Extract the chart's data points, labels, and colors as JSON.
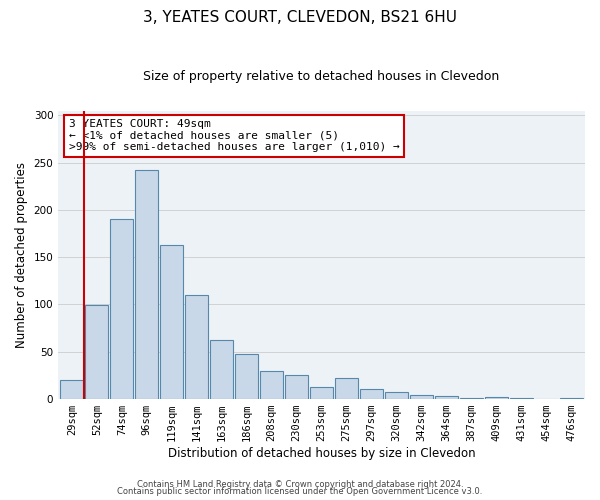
{
  "title": "3, YEATES COURT, CLEVEDON, BS21 6HU",
  "subtitle": "Size of property relative to detached houses in Clevedon",
  "xlabel": "Distribution of detached houses by size in Clevedon",
  "ylabel": "Number of detached properties",
  "bar_labels": [
    "29sqm",
    "52sqm",
    "74sqm",
    "96sqm",
    "119sqm",
    "141sqm",
    "163sqm",
    "186sqm",
    "208sqm",
    "230sqm",
    "253sqm",
    "275sqm",
    "297sqm",
    "320sqm",
    "342sqm",
    "364sqm",
    "387sqm",
    "409sqm",
    "431sqm",
    "454sqm",
    "476sqm"
  ],
  "bar_values": [
    20,
    99,
    190,
    242,
    163,
    110,
    62,
    48,
    30,
    25,
    13,
    22,
    11,
    8,
    4,
    3,
    1,
    2,
    1,
    0,
    1
  ],
  "bar_color": "#c8d8e8",
  "bar_edge_color": "#5588aa",
  "ylim": [
    0,
    305
  ],
  "yticks": [
    0,
    50,
    100,
    150,
    200,
    250,
    300
  ],
  "marker_color": "#cc0000",
  "annotation_title": "3 YEATES COURT: 49sqm",
  "annotation_line1": "← <1% of detached houses are smaller (5)",
  "annotation_line2": ">99% of semi-detached houses are larger (1,010) →",
  "annotation_box_color": "#ffffff",
  "annotation_box_edge": "#cc0000",
  "footer_line1": "Contains HM Land Registry data © Crown copyright and database right 2024.",
  "footer_line2": "Contains public sector information licensed under the Open Government Licence v3.0.",
  "title_fontsize": 11,
  "subtitle_fontsize": 9,
  "axis_label_fontsize": 8.5,
  "tick_fontsize": 7.5,
  "annotation_fontsize": 8,
  "footer_fontsize": 6,
  "background_color": "#edf2f7"
}
